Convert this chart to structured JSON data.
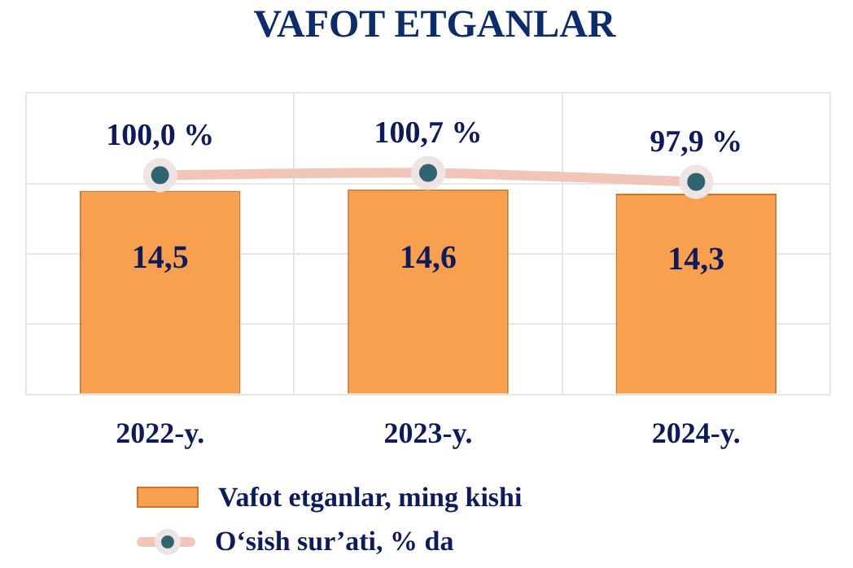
{
  "chart_data": {
    "type": "bar",
    "title": "VAFOT ETGANLAR",
    "categories": [
      "2022-y.",
      "2023-y.",
      "2024-y."
    ],
    "series": [
      {
        "name": "Vafot etganlar, ming kishi",
        "type": "bar",
        "color": "#f9a04e",
        "values": [
          14.5,
          14.6,
          14.3
        ],
        "value_labels": [
          "14,5",
          "14,6",
          "14,3"
        ]
      },
      {
        "name": "O‘sish sur’ati, % da",
        "type": "line",
        "axis": "y2",
        "color": "#f2c5b9",
        "marker": "circle",
        "values": [
          100.0,
          100.7,
          97.9
        ],
        "value_labels": [
          "100,0 %",
          "100,7 %",
          "97,9 %"
        ]
      }
    ],
    "ylim": [
      0,
      21.5
    ],
    "y2lim": [
      31,
      126
    ],
    "tick_labels": "x",
    "grid": true,
    "legend": "bottom"
  }
}
